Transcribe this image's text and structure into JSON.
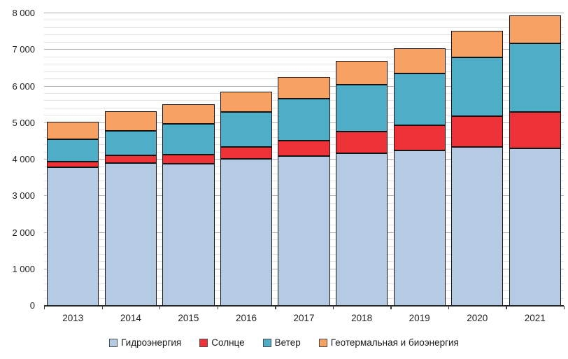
{
  "chart_data": {
    "type": "bar",
    "stacked": true,
    "title": "",
    "categories": [
      "2013",
      "2014",
      "2015",
      "2016",
      "2017",
      "2018",
      "2019",
      "2020",
      "2021"
    ],
    "series": [
      {
        "name": "Гидроэнергия",
        "color": "#B5CAE3",
        "values": [
          3790,
          3900,
          3890,
          4020,
          4090,
          4180,
          4240,
          4340,
          4300
        ]
      },
      {
        "name": "Солнце",
        "color": "#EE3338",
        "values": [
          150,
          210,
          250,
          320,
          430,
          580,
          690,
          850,
          1010
        ]
      },
      {
        "name": "Ветер",
        "color": "#4FAEC7",
        "values": [
          620,
          670,
          840,
          960,
          1150,
          1290,
          1420,
          1610,
          1870
        ]
      },
      {
        "name": "Геотермальная и биоэнергия",
        "color": "#F7A263",
        "values": [
          480,
          540,
          540,
          560,
          590,
          640,
          690,
          720,
          770
        ]
      }
    ],
    "totals": [
      5040,
      5320,
      5520,
      5860,
      6260,
      6690,
      7040,
      7520,
      7950
    ],
    "ylim": [
      0,
      8000
    ],
    "y_major_step": 1000,
    "y_minor_step": 200,
    "y_tick_labels": [
      "0",
      "1 000",
      "2 000",
      "3 000",
      "4 000",
      "5 000",
      "6 000",
      "7 000",
      "8 000"
    ],
    "grid": "major-and-minor-horizontal",
    "legend_position": "bottom",
    "axis_color": "#262626",
    "bar_border_color": "#141414"
  }
}
